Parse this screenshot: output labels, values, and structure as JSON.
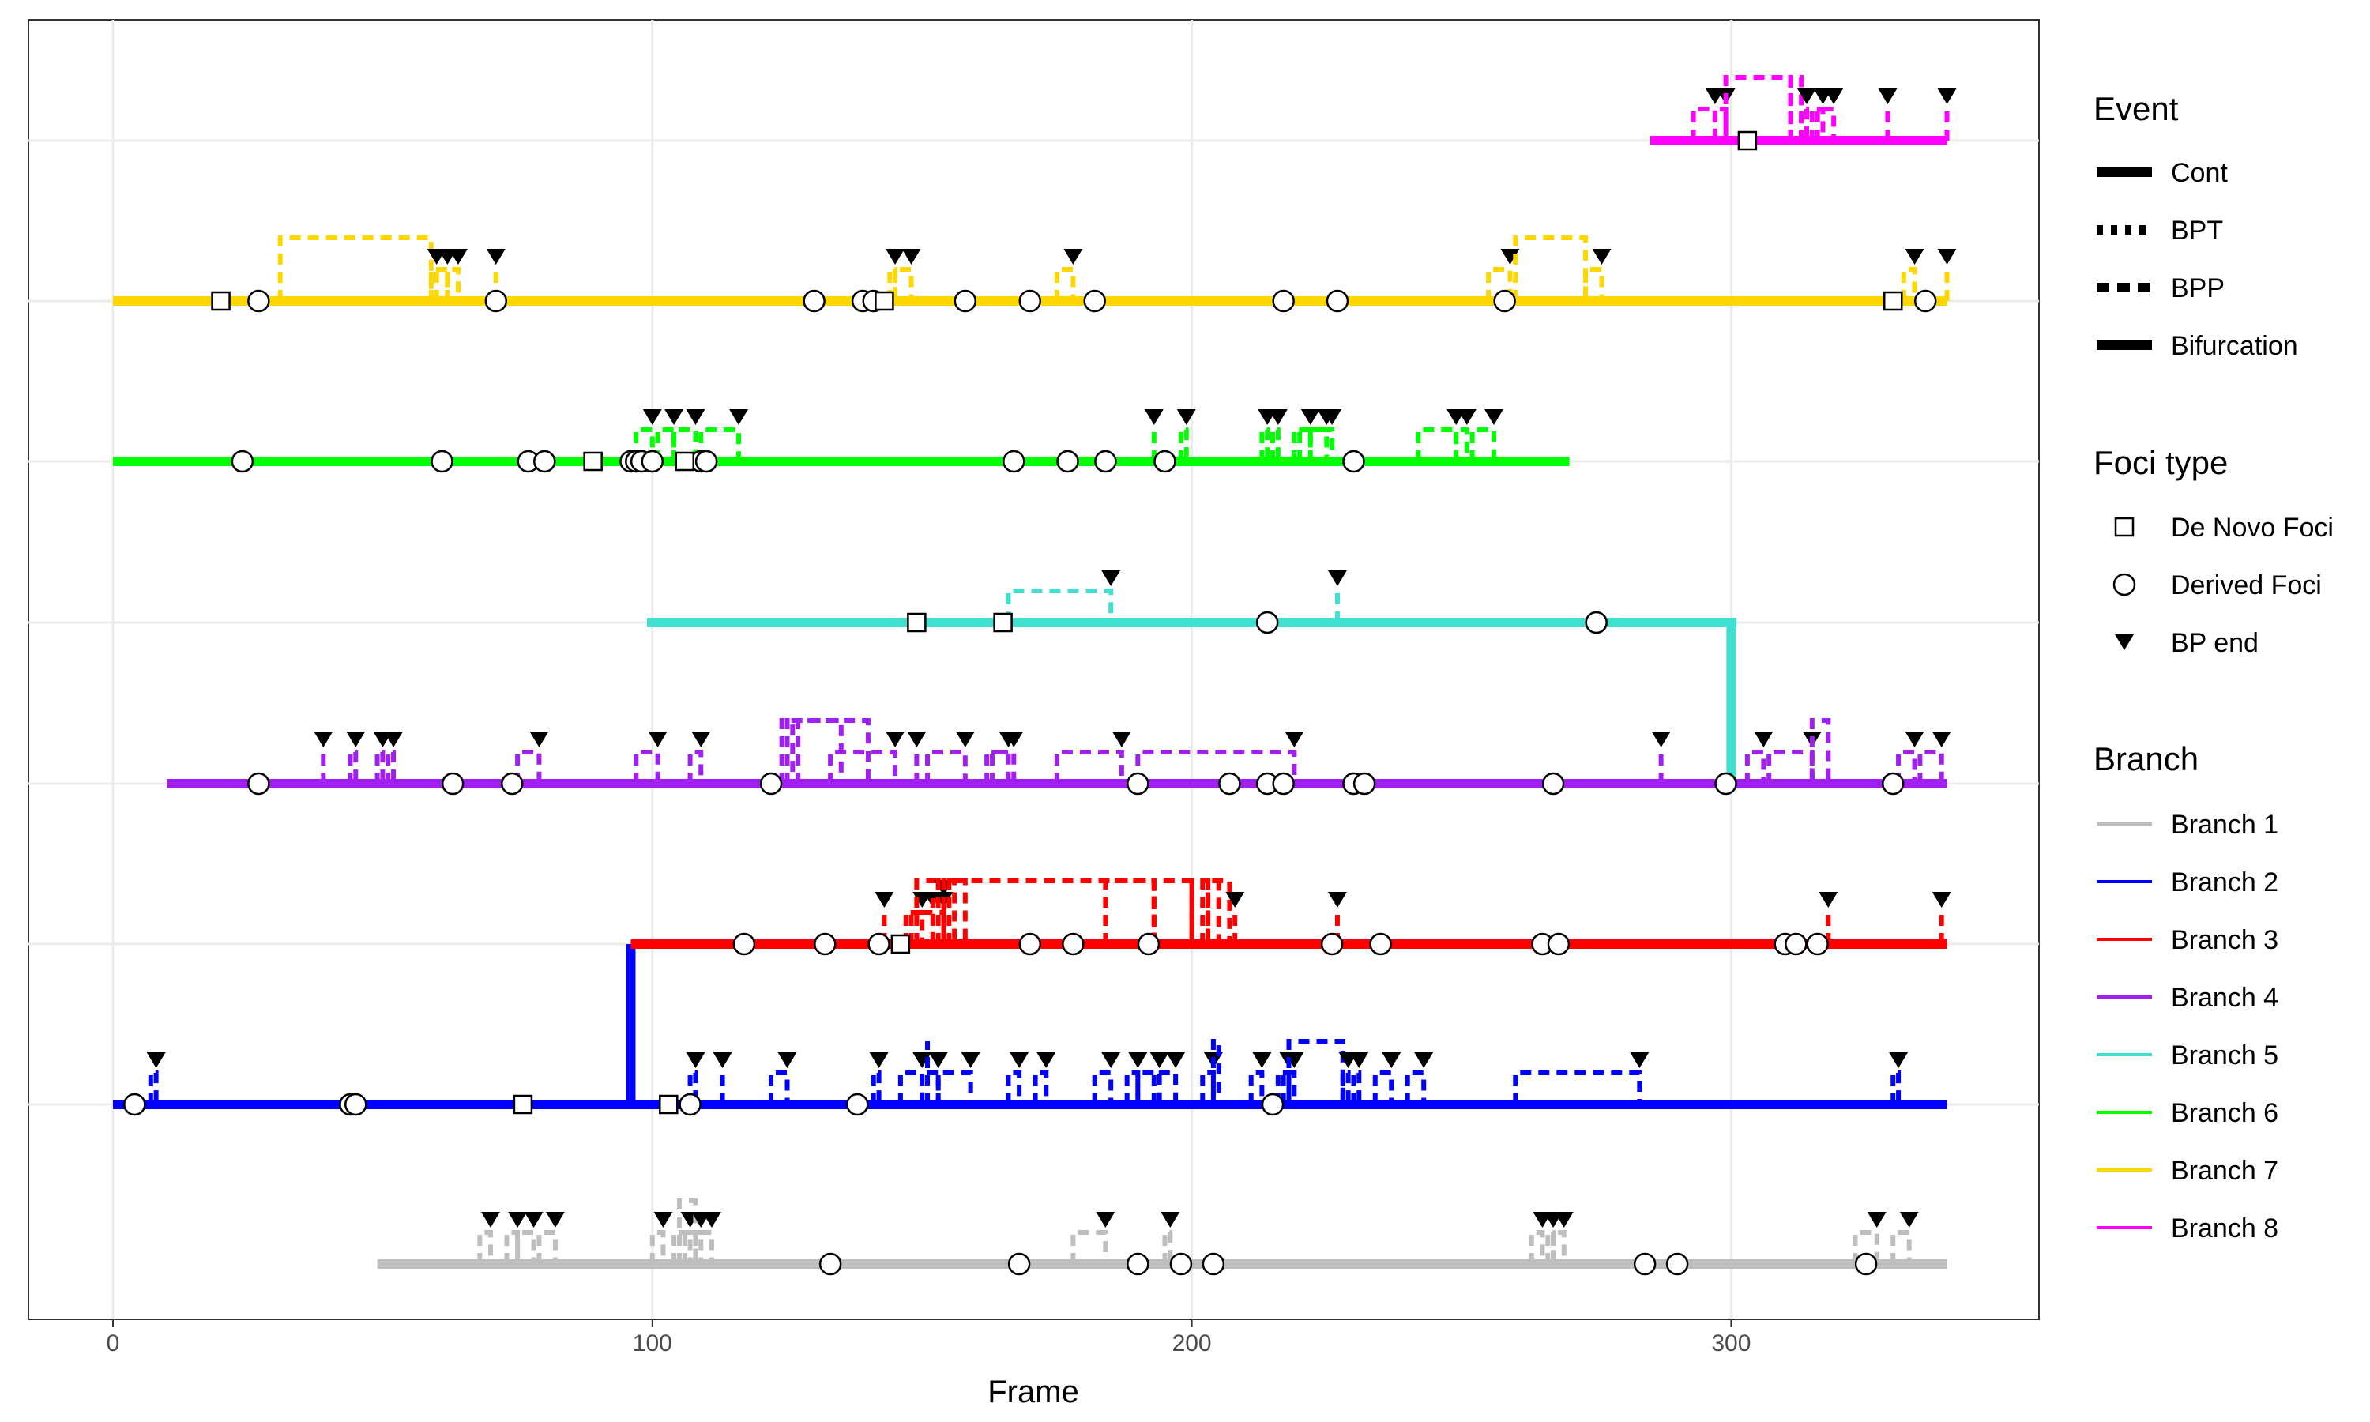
{
  "chart_data": {
    "type": "line",
    "xlabel": "Frame",
    "ylabel": "",
    "xlim": [
      -15,
      358
    ],
    "x_ticks": [
      0,
      100,
      200,
      300
    ],
    "grid": true,
    "branches": [
      {
        "name": "Branch 1",
        "color": "#BEBEBE",
        "range": [
          49,
          340
        ],
        "derived": [
          133,
          168,
          190,
          198,
          204,
          284,
          290,
          325
        ],
        "denovo": [],
        "bp": [
          [
            68,
            70,
            "t"
          ],
          [
            73,
            75,
            "t"
          ],
          [
            75,
            78,
            "t"
          ],
          [
            79,
            82,
            "t"
          ],
          [
            100,
            102,
            "t"
          ],
          [
            104,
            107,
            "t"
          ],
          [
            105,
            108,
            "r"
          ],
          [
            106,
            109,
            "t"
          ],
          [
            108,
            111,
            "t"
          ],
          [
            178,
            184,
            "t"
          ],
          [
            195,
            196,
            "t"
          ],
          [
            263,
            265,
            "t"
          ],
          [
            266,
            267,
            "t"
          ],
          [
            267,
            269,
            "t"
          ],
          [
            323,
            327,
            "t"
          ],
          [
            330,
            333,
            "t"
          ]
        ]
      },
      {
        "name": "Branch 2",
        "color": "#0000FF",
        "range": [
          0,
          340
        ],
        "derived": [
          4,
          44,
          45,
          107,
          138,
          215
        ],
        "denovo": [
          76,
          103
        ],
        "bp": [
          [
            7,
            8,
            "t"
          ],
          [
            107,
            108,
            "t"
          ],
          [
            113,
            113,
            "t"
          ],
          [
            122,
            125,
            "t"
          ],
          [
            141,
            142,
            "t"
          ],
          [
            146,
            150,
            "t"
          ],
          [
            150,
            153,
            "t"
          ],
          [
            151,
            151,
            "r"
          ],
          [
            153,
            159,
            "t"
          ],
          [
            166,
            168,
            "t"
          ],
          [
            171,
            173,
            "t"
          ],
          [
            182,
            185,
            "t"
          ],
          [
            188,
            190,
            "t"
          ],
          [
            190,
            194,
            "t"
          ],
          [
            193,
            197,
            "t"
          ],
          [
            202,
            204,
            "t"
          ],
          [
            204,
            205,
            "r"
          ],
          [
            211,
            213,
            "t"
          ],
          [
            216,
            218,
            "t"
          ],
          [
            217,
            219,
            "t"
          ],
          [
            218,
            228,
            "r"
          ],
          [
            228,
            229,
            "t"
          ],
          [
            230,
            231,
            "t"
          ],
          [
            234,
            237,
            "t"
          ],
          [
            240,
            243,
            "t"
          ],
          [
            260,
            283,
            "t"
          ],
          [
            330,
            331,
            "t"
          ]
        ]
      },
      {
        "name": "Branch 3",
        "color": "#FF0000",
        "range": [
          96,
          340
        ],
        "derived": [
          117,
          132,
          142,
          170,
          178,
          192,
          226,
          235,
          265,
          268,
          310,
          312,
          316
        ],
        "denovo": [
          146
        ],
        "bp": [
          [
            143,
            143,
            "t"
          ],
          [
            147,
            150,
            "t"
          ],
          [
            148,
            152,
            "t"
          ],
          [
            149,
            154,
            "t"
          ],
          [
            149,
            154,
            "r"
          ],
          [
            152,
            154,
            "s"
          ],
          [
            153,
            156,
            "r"
          ],
          [
            155,
            158,
            "r"
          ],
          [
            154,
            193,
            "r"
          ],
          [
            184,
            193,
            "r"
          ],
          [
            193,
            200,
            "r"
          ],
          [
            200,
            203,
            "r"
          ],
          [
            203,
            205,
            "r"
          ],
          [
            202,
            207,
            "r"
          ],
          [
            208,
            208,
            "t"
          ],
          [
            227,
            227,
            "t"
          ],
          [
            318,
            318,
            "t"
          ],
          [
            339,
            339,
            "t"
          ]
        ]
      },
      {
        "name": "Branch 4",
        "color": "#A020F0",
        "range": [
          10,
          340
        ],
        "derived": [
          27,
          63,
          74,
          122,
          190,
          207,
          214,
          217,
          230,
          232,
          267,
          299,
          330
        ],
        "denovo": [],
        "bp": [
          [
            39,
            39,
            "t"
          ],
          [
            44,
            45,
            "t"
          ],
          [
            49,
            50,
            "t"
          ],
          [
            51,
            52,
            "t"
          ],
          [
            75,
            79,
            "t"
          ],
          [
            97,
            101,
            "t"
          ],
          [
            107,
            109,
            "t"
          ],
          [
            124,
            135,
            "r"
          ],
          [
            125,
            126,
            "r"
          ],
          [
            127,
            140,
            "r"
          ],
          [
            133,
            145,
            "t"
          ],
          [
            149,
            149,
            "t"
          ],
          [
            151,
            158,
            "t"
          ],
          [
            162,
            166,
            "t"
          ],
          [
            163,
            167,
            "t"
          ],
          [
            175,
            187,
            "t"
          ],
          [
            190,
            219,
            "t"
          ],
          [
            287,
            287,
            "t"
          ],
          [
            303,
            306,
            "t"
          ],
          [
            307,
            315,
            "t"
          ],
          [
            315,
            318,
            "r"
          ],
          [
            331,
            334,
            "t"
          ],
          [
            335,
            339,
            "t"
          ]
        ]
      },
      {
        "name": "Branch 5",
        "color": "#40E0D0",
        "range": [
          99,
          301
        ],
        "derived": [
          214,
          275
        ],
        "denovo": [
          149,
          165
        ],
        "bp": [
          [
            166,
            185,
            "t"
          ],
          [
            227,
            227,
            "t"
          ]
        ]
      },
      {
        "name": "Branch 6",
        "color": "#00FF00",
        "range": [
          0,
          270
        ],
        "derived": [
          24,
          61,
          77,
          80,
          96,
          97,
          98,
          100,
          109,
          110,
          167,
          177,
          184,
          195,
          230
        ],
        "denovo": [
          89,
          106
        ],
        "bp": [
          [
            97,
            100,
            "t"
          ],
          [
            101,
            104,
            "t"
          ],
          [
            104,
            108,
            "t"
          ],
          [
            109,
            116,
            "t"
          ],
          [
            193,
            193,
            "t"
          ],
          [
            198,
            199,
            "t"
          ],
          [
            213,
            214,
            "t"
          ],
          [
            215,
            216,
            "t"
          ],
          [
            219,
            222,
            "t"
          ],
          [
            220,
            226,
            "t"
          ],
          [
            222,
            225,
            "t"
          ],
          [
            242,
            249,
            "t"
          ],
          [
            249,
            251,
            "t"
          ],
          [
            252,
            256,
            "t"
          ]
        ]
      },
      {
        "name": "Branch 7",
        "color": "#FFD700",
        "range": [
          0,
          340
        ],
        "derived": [
          27,
          71,
          130,
          139,
          141,
          158,
          170,
          182,
          217,
          227,
          258,
          336
        ],
        "denovo": [
          20,
          143,
          330
        ],
        "bp": [
          [
            31,
            59,
            "r"
          ],
          [
            60,
            60,
            "t"
          ],
          [
            59,
            62,
            "t"
          ],
          [
            62,
            64,
            "t"
          ],
          [
            71,
            71,
            "t"
          ],
          [
            144,
            145,
            "t"
          ],
          [
            145,
            148,
            "t"
          ],
          [
            175,
            178,
            "t"
          ],
          [
            255,
            259,
            "t"
          ],
          [
            260,
            273,
            "r"
          ],
          [
            273,
            276,
            "t"
          ],
          [
            332,
            334,
            "t"
          ],
          [
            340,
            340,
            "t"
          ]
        ]
      },
      {
        "name": "Branch 8",
        "color": "#FF00FF",
        "range": [
          285,
          340
        ],
        "derived": [],
        "denovo": [
          303
        ],
        "bp": [
          [
            293,
            297,
            "t"
          ],
          [
            297,
            299,
            "t"
          ],
          [
            299,
            311,
            "r"
          ],
          [
            311,
            313,
            "r"
          ],
          [
            313,
            314,
            "t"
          ],
          [
            315,
            317,
            "t"
          ],
          [
            316,
            319,
            "t"
          ],
          [
            329,
            329,
            "t"
          ],
          [
            340,
            340,
            "t"
          ]
        ]
      }
    ]
  },
  "legend": {
    "event_title": "Event",
    "event_items": [
      "Cont",
      "BPT",
      "BPP",
      "Bifurcation"
    ],
    "foci_title": "Foci type",
    "foci_items": [
      "De Novo Foci",
      "Derived Foci",
      "BP end"
    ],
    "branch_title": "Branch",
    "branch_items": [
      " Branch 1",
      "Branch 2",
      "Branch 3",
      "Branch 4",
      "Branch 5",
      "Branch 6",
      "Branch 7",
      "Branch 8"
    ]
  },
  "bifurcations": [
    {
      "x": 96,
      "from": "Branch 2",
      "to": "Branch 3",
      "color": "#0000FF"
    },
    {
      "x": 300,
      "from": "Branch 4",
      "to": "Branch 5",
      "color": "#40E0D0"
    }
  ]
}
